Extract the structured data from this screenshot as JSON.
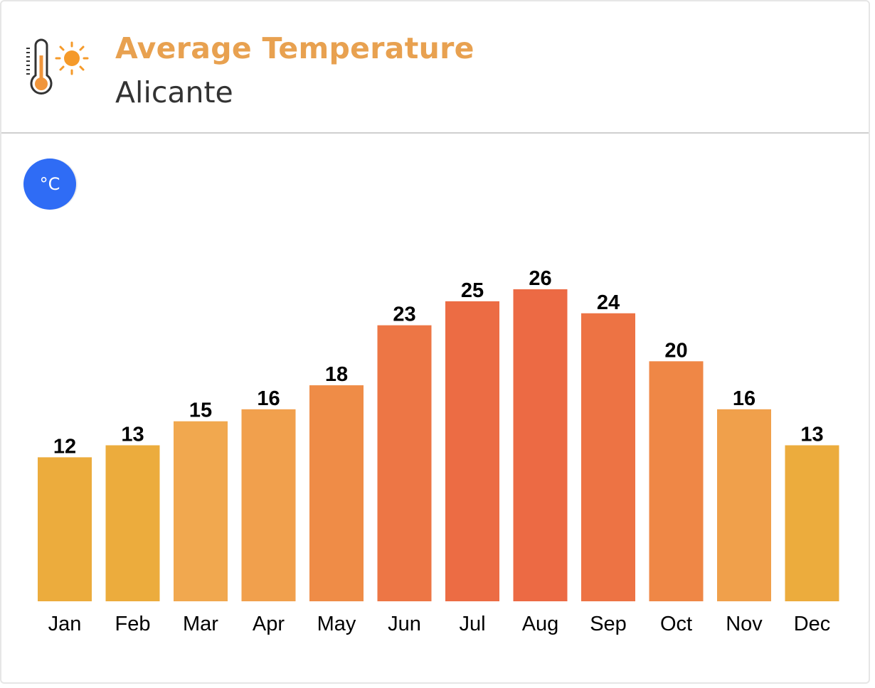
{
  "header": {
    "title": "Average Temperature",
    "subtitle": "Alicante",
    "icon": "thermometer-sun-icon"
  },
  "unit_toggle": {
    "label": "°C",
    "color": "#2f6cf5"
  },
  "colors": {
    "title": "#e8a150",
    "subtitle": "#333333"
  },
  "chart_data": {
    "type": "bar",
    "title": "Average Temperature",
    "subtitle": "Alicante",
    "unit": "°C",
    "categories": [
      "Jan",
      "Feb",
      "Mar",
      "Apr",
      "May",
      "Jun",
      "Jul",
      "Aug",
      "Sep",
      "Oct",
      "Nov",
      "Dec"
    ],
    "values": [
      12,
      13,
      15,
      16,
      18,
      23,
      25,
      26,
      24,
      20,
      16,
      13
    ],
    "bar_colors": [
      "#ecac3d",
      "#ecac3d",
      "#f1a84f",
      "#f1a04d",
      "#ef8c47",
      "#ed7645",
      "#ec6c44",
      "#ec6a44",
      "#ed7344",
      "#ef8746",
      "#f0a04b",
      "#ecac3d"
    ],
    "data_labels": true,
    "ylim": [
      0,
      26
    ],
    "grid": false,
    "legend": "none"
  }
}
